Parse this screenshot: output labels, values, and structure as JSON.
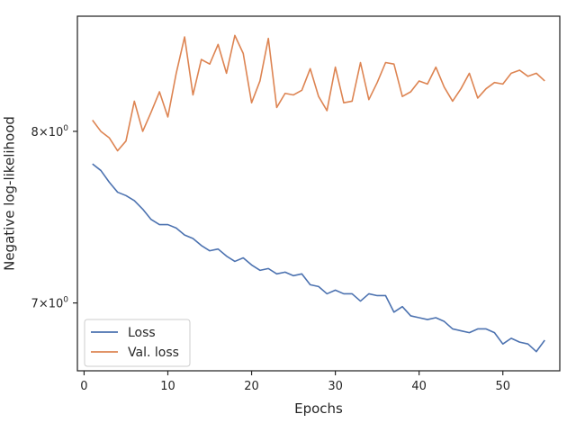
{
  "chart_data": {
    "type": "line",
    "title": "",
    "xlabel": "Epochs",
    "ylabel": "Negative log-likelihood",
    "yscale": "log",
    "xlim": [
      -0.8,
      56.8
    ],
    "ylim": [
      6.64,
      8.75
    ],
    "grid": false,
    "legend_position": "lower-left",
    "x_ticks": [
      0,
      10,
      20,
      30,
      40,
      50
    ],
    "x_tick_labels": [
      "0",
      "10",
      "20",
      "30",
      "40",
      "50"
    ],
    "y_ticks": [
      7,
      8
    ],
    "y_tick_labels": [
      {
        "base": "7×10",
        "exp": "0"
      },
      {
        "base": "8×10",
        "exp": "0"
      }
    ],
    "x": [
      1,
      2,
      3,
      4,
      5,
      6,
      7,
      8,
      9,
      10,
      11,
      12,
      13,
      14,
      15,
      16,
      17,
      18,
      19,
      20,
      21,
      22,
      23,
      24,
      25,
      26,
      27,
      28,
      29,
      30,
      31,
      32,
      33,
      34,
      35,
      36,
      37,
      38,
      39,
      40,
      41,
      42,
      43,
      44,
      45,
      46,
      47,
      48,
      49,
      50,
      51,
      52,
      53,
      54,
      55
    ],
    "series": [
      {
        "name": "Loss",
        "color": "#4c72b0",
        "values": [
          7.8,
          7.76,
          7.69,
          7.63,
          7.61,
          7.58,
          7.53,
          7.47,
          7.44,
          7.44,
          7.42,
          7.38,
          7.36,
          7.32,
          7.29,
          7.3,
          7.26,
          7.23,
          7.25,
          7.21,
          7.18,
          7.19,
          7.16,
          7.17,
          7.15,
          7.16,
          7.1,
          7.09,
          7.05,
          7.07,
          7.05,
          7.05,
          7.01,
          7.05,
          7.04,
          7.04,
          6.95,
          6.98,
          6.93,
          6.92,
          6.91,
          6.92,
          6.9,
          6.86,
          6.85,
          6.84,
          6.86,
          6.86,
          6.84,
          6.78,
          6.81,
          6.79,
          6.78,
          6.74,
          6.8
        ]
      },
      {
        "name": "Val. loss",
        "color": "#dd8452",
        "values": [
          8.07,
          8.0,
          7.96,
          7.88,
          7.94,
          8.19,
          8.0,
          8.12,
          8.25,
          8.09,
          8.37,
          8.61,
          8.23,
          8.46,
          8.43,
          8.56,
          8.37,
          8.62,
          8.5,
          8.18,
          8.32,
          8.6,
          8.15,
          8.24,
          8.23,
          8.26,
          8.4,
          8.22,
          8.13,
          8.41,
          8.18,
          8.19,
          8.44,
          8.2,
          8.31,
          8.44,
          8.43,
          8.22,
          8.25,
          8.32,
          8.3,
          8.41,
          8.28,
          8.19,
          8.27,
          8.37,
          8.21,
          8.27,
          8.31,
          8.3,
          8.37,
          8.39,
          8.35,
          8.37,
          8.32
        ]
      }
    ]
  }
}
